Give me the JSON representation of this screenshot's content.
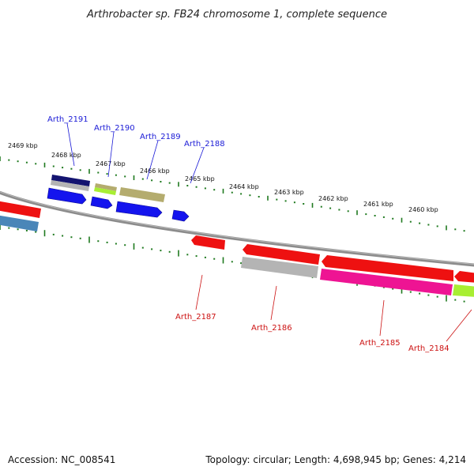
{
  "title": "Arthrobacter sp. FB24 chromosome 1, complete sequence",
  "footer": {
    "accession": "Accession: NC_008541",
    "topology": "Topology: circular; Length: 4,698,945 bp; Genes: 4,214"
  },
  "scale_labels": [
    "2469 kbp",
    "2468 kbp",
    "2467 kbp",
    "2466 kbp",
    "2465 kbp",
    "2464 kbp",
    "2463 kbp",
    "2462 kbp",
    "2461 kbp",
    "2460 kbp"
  ],
  "gene_labels_top": [
    "Arth_2191",
    "Arth_2190",
    "Arth_2189",
    "Arth_2188"
  ],
  "gene_labels_bottom": [
    "Arth_2187",
    "Arth_2186",
    "Arth_2185",
    "Arth_2184"
  ],
  "colors": {
    "backbone": "#7a7a7a",
    "tick": "#1f7a1f",
    "red": "#ee1111",
    "blue": "#1414ee",
    "navy": "#141470",
    "gray": "#b4b4b4",
    "lime": "#a8ee33",
    "olive": "#b4ac6e",
    "steel": "#4a86b8",
    "magenta": "#ee1493",
    "label_top": "#1a1ad6",
    "label_bottom": "#cc1111"
  }
}
